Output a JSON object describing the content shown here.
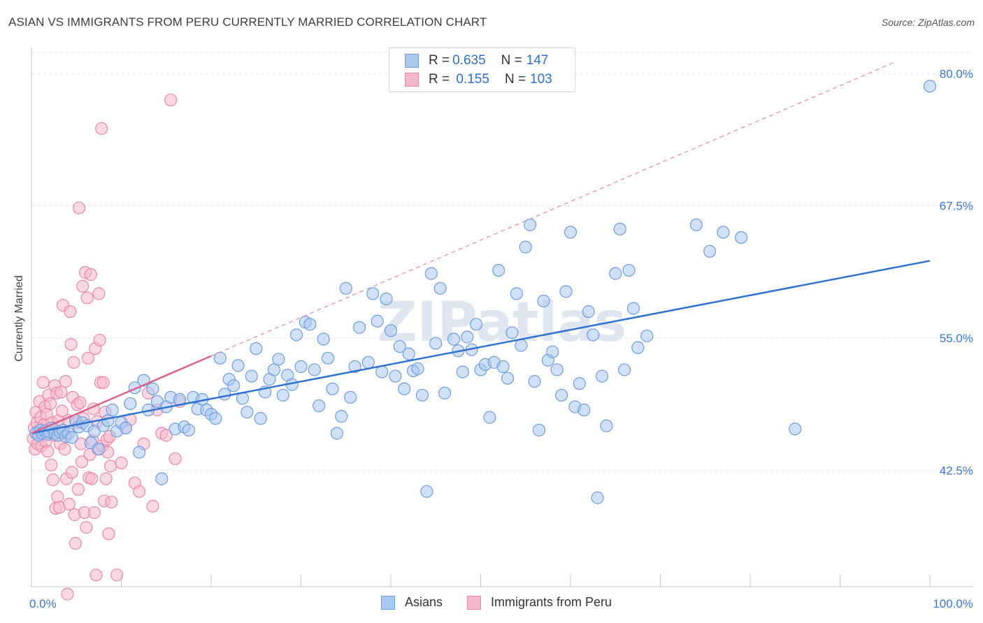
{
  "title": "ASIAN VS IMMIGRANTS FROM PERU CURRENTLY MARRIED CORRELATION CHART",
  "source": "Source: ZipAtlas.com",
  "watermark": "ZIPatlas",
  "colors": {
    "asians_fill": "#a9c8f0",
    "asians_stroke": "#6f9ee0",
    "asians_line": "#2f72d0",
    "peru_fill": "#f5b8cb",
    "peru_stroke": "#eb8aa8",
    "peru_line": "#e0608c",
    "tick_label": "#3a76d0",
    "grid": "#e3e3e3"
  },
  "legend_top": {
    "rows": [
      {
        "r_label": "R = ",
        "r_value": "0.635",
        "n_label": "N = ",
        "n_value": "147"
      },
      {
        "r_label": "R = ",
        "r_value": " 0.155",
        "n_label": "N = ",
        "n_value": "103"
      }
    ]
  },
  "legend_bottom": [
    "Asians",
    "Immigrants from Peru"
  ],
  "chart_data": {
    "type": "scatter",
    "title": "ASIAN VS IMMIGRANTS FROM PERU CURRENTLY MARRIED CORRELATION CHART",
    "xlabel": "",
    "ylabel": "Currently Married",
    "xlim": [
      0,
      100
    ],
    "ylim": [
      31.5,
      82
    ],
    "x_tick_labels": [
      "0.0%",
      "100.0%"
    ],
    "y_ticks": [
      42.5,
      55.0,
      67.5,
      80.0
    ],
    "y_tick_labels": [
      "42.5%",
      "55.0%",
      "67.5%",
      "80.0%"
    ],
    "grid": true,
    "legend_position": "top-center",
    "series": [
      {
        "name": "Asians",
        "R": 0.635,
        "N": 147,
        "trend": [
          [
            0,
            46.0
          ],
          [
            100,
            62.3
          ]
        ],
        "points": [
          [
            0.5,
            46.0
          ],
          [
            0.8,
            45.8
          ],
          [
            1.0,
            46.3
          ],
          [
            1.2,
            46.0
          ],
          [
            1.5,
            46.2
          ],
          [
            1.8,
            45.9
          ],
          [
            2.0,
            46.1
          ],
          [
            2.3,
            46.5
          ],
          [
            2.6,
            46.0
          ],
          [
            2.9,
            45.8
          ],
          [
            3.2,
            46.1
          ],
          [
            3.5,
            46.3
          ],
          [
            3.8,
            45.7
          ],
          [
            4.1,
            46.0
          ],
          [
            4.5,
            45.6
          ],
          [
            4.9,
            47.2
          ],
          [
            5.3,
            46.6
          ],
          [
            5.7,
            47.0
          ],
          [
            6.2,
            46.7
          ],
          [
            6.6,
            45.1
          ],
          [
            7.0,
            46.2
          ],
          [
            7.5,
            44.5
          ],
          [
            8.0,
            46.7
          ],
          [
            8.5,
            47.2
          ],
          [
            9.0,
            48.2
          ],
          [
            9.5,
            46.2
          ],
          [
            10.0,
            47.0
          ],
          [
            10.5,
            46.5
          ],
          [
            11.0,
            48.8
          ],
          [
            11.5,
            50.3
          ],
          [
            12.0,
            44.2
          ],
          [
            12.5,
            51.0
          ],
          [
            13.0,
            48.2
          ],
          [
            13.5,
            50.2
          ],
          [
            14.0,
            49.0
          ],
          [
            14.5,
            41.7
          ],
          [
            15.0,
            48.5
          ],
          [
            15.5,
            49.4
          ],
          [
            16.0,
            46.4
          ],
          [
            16.5,
            49.2
          ],
          [
            17.0,
            46.6
          ],
          [
            17.5,
            46.3
          ],
          [
            18.0,
            49.4
          ],
          [
            18.5,
            48.3
          ],
          [
            19.0,
            49.2
          ],
          [
            19.5,
            48.2
          ],
          [
            20.0,
            47.8
          ],
          [
            20.5,
            47.4
          ],
          [
            21.0,
            53.1
          ],
          [
            21.5,
            49.7
          ],
          [
            22.0,
            51.1
          ],
          [
            22.5,
            50.5
          ],
          [
            23.0,
            52.4
          ],
          [
            23.5,
            49.3
          ],
          [
            24.0,
            48.0
          ],
          [
            24.5,
            51.4
          ],
          [
            25.0,
            54.0
          ],
          [
            25.5,
            47.4
          ],
          [
            26.0,
            49.9
          ],
          [
            26.5,
            51.1
          ],
          [
            27.0,
            52.0
          ],
          [
            27.5,
            53.0
          ],
          [
            28.0,
            49.6
          ],
          [
            28.5,
            51.5
          ],
          [
            29.0,
            50.6
          ],
          [
            29.5,
            55.3
          ],
          [
            30.0,
            52.3
          ],
          [
            30.5,
            56.5
          ],
          [
            31.0,
            56.3
          ],
          [
            31.5,
            52.0
          ],
          [
            32.0,
            48.6
          ],
          [
            32.5,
            54.9
          ],
          [
            33.0,
            53.1
          ],
          [
            33.5,
            50.2
          ],
          [
            34.0,
            46.0
          ],
          [
            34.5,
            47.6
          ],
          [
            35.0,
            59.7
          ],
          [
            35.5,
            49.4
          ],
          [
            36.0,
            52.3
          ],
          [
            36.5,
            56.0
          ],
          [
            37.5,
            52.7
          ],
          [
            38.0,
            59.2
          ],
          [
            38.5,
            56.6
          ],
          [
            39.0,
            51.8
          ],
          [
            39.5,
            58.7
          ],
          [
            40.0,
            55.7
          ],
          [
            40.5,
            51.4
          ],
          [
            41.0,
            54.2
          ],
          [
            41.5,
            50.2
          ],
          [
            42.0,
            53.5
          ],
          [
            42.5,
            51.9
          ],
          [
            43.0,
            52.1
          ],
          [
            43.5,
            49.6
          ],
          [
            44.0,
            40.5
          ],
          [
            44.5,
            61.1
          ],
          [
            45.0,
            54.5
          ],
          [
            45.5,
            59.7
          ],
          [
            46.0,
            49.8
          ],
          [
            47.0,
            54.9
          ],
          [
            47.5,
            53.8
          ],
          [
            48.0,
            51.8
          ],
          [
            48.5,
            55.1
          ],
          [
            49.0,
            53.9
          ],
          [
            49.5,
            56.3
          ],
          [
            50.0,
            52.0
          ],
          [
            50.5,
            52.5
          ],
          [
            51.0,
            47.5
          ],
          [
            51.5,
            52.7
          ],
          [
            52.0,
            61.4
          ],
          [
            52.5,
            52.3
          ],
          [
            53.0,
            51.2
          ],
          [
            53.5,
            55.5
          ],
          [
            54.0,
            59.2
          ],
          [
            54.5,
            54.3
          ],
          [
            55.0,
            63.6
          ],
          [
            55.5,
            65.7
          ],
          [
            56.0,
            50.9
          ],
          [
            56.5,
            46.3
          ],
          [
            57.0,
            58.5
          ],
          [
            57.5,
            52.9
          ],
          [
            58.0,
            53.7
          ],
          [
            58.5,
            52.0
          ],
          [
            59.0,
            49.6
          ],
          [
            59.5,
            59.4
          ],
          [
            60.0,
            65.0
          ],
          [
            60.5,
            48.5
          ],
          [
            61.0,
            50.7
          ],
          [
            61.5,
            48.2
          ],
          [
            62.0,
            57.5
          ],
          [
            62.5,
            55.3
          ],
          [
            63.0,
            39.9
          ],
          [
            63.5,
            51.4
          ],
          [
            64.0,
            46.7
          ],
          [
            65.0,
            61.1
          ],
          [
            65.5,
            65.3
          ],
          [
            66.0,
            52.0
          ],
          [
            66.5,
            61.4
          ],
          [
            67.0,
            57.8
          ],
          [
            67.5,
            54.1
          ],
          [
            68.5,
            55.2
          ],
          [
            74.0,
            65.7
          ],
          [
            75.5,
            63.2
          ],
          [
            77.0,
            65.0
          ],
          [
            79.0,
            64.5
          ],
          [
            85.0,
            46.4
          ],
          [
            100.0,
            78.8
          ]
        ]
      },
      {
        "name": "Immigrants from Peru",
        "R": 0.155,
        "N": 103,
        "trend": [
          [
            0,
            46.0
          ],
          [
            20,
            53.3
          ]
        ],
        "points": [
          [
            0.2,
            45.5
          ],
          [
            0.3,
            46.5
          ],
          [
            0.4,
            44.5
          ],
          [
            0.5,
            48.0
          ],
          [
            0.6,
            47.0
          ],
          [
            0.7,
            45.0
          ],
          [
            0.8,
            46.2
          ],
          [
            0.9,
            49.0
          ],
          [
            1.0,
            47.5
          ],
          [
            1.1,
            44.8
          ],
          [
            1.2,
            46.0
          ],
          [
            1.3,
            50.8
          ],
          [
            1.4,
            46.8
          ],
          [
            1.5,
            48.5
          ],
          [
            1.6,
            45.2
          ],
          [
            1.7,
            47.8
          ],
          [
            1.8,
            44.3
          ],
          [
            1.9,
            49.6
          ],
          [
            2.0,
            46.5
          ],
          [
            2.1,
            48.8
          ],
          [
            2.2,
            43.0
          ],
          [
            2.3,
            47.0
          ],
          [
            2.4,
            41.6
          ],
          [
            2.5,
            45.8
          ],
          [
            2.6,
            50.5
          ],
          [
            2.7,
            38.9
          ],
          [
            2.8,
            49.8
          ],
          [
            2.9,
            40.0
          ],
          [
            3.0,
            47.2
          ],
          [
            3.1,
            39.0
          ],
          [
            3.2,
            45.0
          ],
          [
            3.3,
            49.9
          ],
          [
            3.4,
            48.1
          ],
          [
            3.5,
            58.1
          ],
          [
            3.6,
            46.1
          ],
          [
            3.7,
            44.5
          ],
          [
            3.8,
            50.9
          ],
          [
            3.9,
            41.7
          ],
          [
            4.0,
            30.8
          ],
          [
            4.1,
            47.2
          ],
          [
            4.2,
            39.3
          ],
          [
            4.3,
            57.5
          ],
          [
            4.4,
            54.4
          ],
          [
            4.5,
            42.3
          ],
          [
            4.6,
            49.4
          ],
          [
            4.7,
            52.7
          ],
          [
            4.8,
            38.3
          ],
          [
            4.9,
            35.6
          ],
          [
            5.0,
            47.0
          ],
          [
            5.1,
            48.7
          ],
          [
            5.2,
            40.7
          ],
          [
            5.3,
            67.3
          ],
          [
            5.4,
            48.9
          ],
          [
            5.5,
            45.0
          ],
          [
            5.6,
            43.3
          ],
          [
            5.7,
            59.9
          ],
          [
            5.8,
            47.4
          ],
          [
            5.9,
            38.5
          ],
          [
            6.0,
            61.2
          ],
          [
            6.1,
            37.1
          ],
          [
            6.2,
            58.8
          ],
          [
            6.3,
            53.1
          ],
          [
            6.4,
            41.8
          ],
          [
            6.5,
            44.0
          ],
          [
            6.6,
            61.0
          ],
          [
            6.7,
            41.7
          ],
          [
            6.8,
            45.3
          ],
          [
            6.9,
            48.3
          ],
          [
            7.0,
            38.5
          ],
          [
            7.1,
            54.0
          ],
          [
            7.2,
            32.6
          ],
          [
            7.3,
            47.1
          ],
          [
            7.4,
            44.5
          ],
          [
            7.5,
            59.2
          ],
          [
            7.6,
            54.8
          ],
          [
            7.7,
            50.8
          ],
          [
            7.8,
            74.8
          ],
          [
            7.9,
            44.8
          ],
          [
            8.0,
            50.8
          ],
          [
            8.1,
            39.6
          ],
          [
            8.2,
            48.0
          ],
          [
            8.3,
            41.7
          ],
          [
            8.4,
            45.4
          ],
          [
            8.5,
            44.2
          ],
          [
            8.6,
            36.5
          ],
          [
            8.7,
            45.7
          ],
          [
            8.8,
            42.9
          ],
          [
            8.9,
            39.5
          ],
          [
            9.5,
            32.6
          ],
          [
            10.0,
            43.2
          ],
          [
            10.5,
            46.5
          ],
          [
            11.0,
            47.3
          ],
          [
            11.5,
            41.3
          ],
          [
            12.0,
            40.5
          ],
          [
            12.5,
            45.0
          ],
          [
            13.0,
            49.8
          ],
          [
            13.5,
            39.1
          ],
          [
            14.0,
            48.2
          ],
          [
            14.5,
            46.0
          ],
          [
            15.0,
            45.8
          ],
          [
            15.5,
            77.5
          ],
          [
            16.0,
            43.6
          ],
          [
            16.5,
            49.0
          ]
        ]
      }
    ]
  }
}
